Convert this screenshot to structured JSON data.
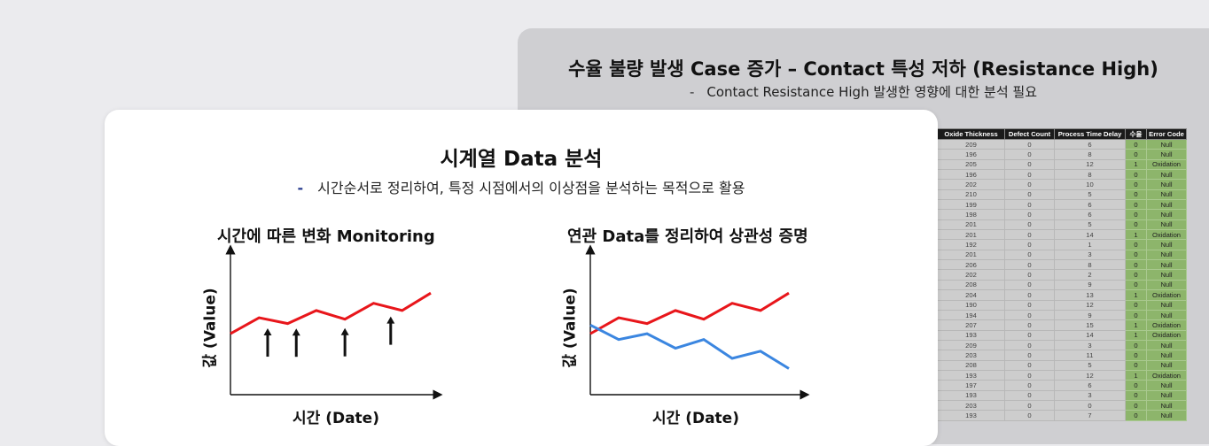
{
  "back_slide": {
    "title": "수율 불량 발생 Case 증가 – Contact 특성 저하 (Resistance High)",
    "subtitle_dash": "-",
    "subtitle": "Contact Resistance High 발생한 영향에 대한 분석 필요",
    "table": {
      "headers": [
        "Oxide Thickness",
        "Defect Count",
        "Process Time Delay",
        "수율",
        "Error Code"
      ],
      "rows": [
        [
          "209",
          "0",
          "6",
          "0",
          "Null"
        ],
        [
          "196",
          "0",
          "8",
          "0",
          "Null"
        ],
        [
          "205",
          "0",
          "12",
          "1",
          "Oxidation"
        ],
        [
          "196",
          "0",
          "8",
          "0",
          "Null"
        ],
        [
          "202",
          "0",
          "10",
          "0",
          "Null"
        ],
        [
          "210",
          "0",
          "5",
          "0",
          "Null"
        ],
        [
          "199",
          "0",
          "6",
          "0",
          "Null"
        ],
        [
          "198",
          "0",
          "6",
          "0",
          "Null"
        ],
        [
          "201",
          "0",
          "5",
          "0",
          "Null"
        ],
        [
          "201",
          "0",
          "14",
          "1",
          "Oxidation"
        ],
        [
          "192",
          "0",
          "1",
          "0",
          "Null"
        ],
        [
          "201",
          "0",
          "3",
          "0",
          "Null"
        ],
        [
          "206",
          "0",
          "8",
          "0",
          "Null"
        ],
        [
          "202",
          "0",
          "2",
          "0",
          "Null"
        ],
        [
          "208",
          "0",
          "9",
          "0",
          "Null"
        ],
        [
          "204",
          "0",
          "13",
          "1",
          "Oxidation"
        ],
        [
          "190",
          "0",
          "12",
          "0",
          "Null"
        ],
        [
          "194",
          "0",
          "9",
          "0",
          "Null"
        ],
        [
          "207",
          "0",
          "15",
          "1",
          "Oxidation"
        ],
        [
          "193",
          "0",
          "14",
          "1",
          "Oxidation"
        ],
        [
          "209",
          "0",
          "3",
          "0",
          "Null"
        ],
        [
          "203",
          "0",
          "11",
          "0",
          "Null"
        ],
        [
          "208",
          "0",
          "5",
          "0",
          "Null"
        ],
        [
          "193",
          "0",
          "12",
          "1",
          "Oxidation"
        ],
        [
          "197",
          "0",
          "6",
          "0",
          "Null"
        ],
        [
          "193",
          "0",
          "3",
          "0",
          "Null"
        ],
        [
          "203",
          "0",
          "0",
          "0",
          "Null"
        ],
        [
          "193",
          "0",
          "7",
          "0",
          "Null"
        ]
      ]
    }
  },
  "front_slide": {
    "title": "시계열 Data 분석",
    "subtitle_dash": "-",
    "subtitle": "시간순서로 정리하여, 특정 시점에서의 이상점을 분석하는 목적으로 활용",
    "colors": {
      "red": "#e8161b",
      "blue": "#3b86e0",
      "axis": "#111111"
    },
    "chart_data": [
      {
        "type": "line",
        "title": "시간에 따른 변화 Monitoring",
        "xlabel": "시간 (Date)",
        "ylabel": "값 (Value)",
        "series": [
          {
            "color": "#e8161b",
            "x": [
              0,
              1,
              2,
              3,
              4,
              5,
              6,
              7
            ],
            "values": [
              4.2,
              5.3,
              4.9,
              5.8,
              5.2,
              6.3,
              5.8,
              7.0
            ]
          }
        ],
        "annotations": {
          "arrow_markers_at_x": [
            1.3,
            2.3,
            4.0,
            5.6
          ]
        },
        "ylim": [
          0,
          10
        ]
      },
      {
        "type": "line",
        "title": "연관 Data를 정리하여 상관성 증명",
        "xlabel": "시간 (Date)",
        "ylabel": "값 (Value)",
        "series": [
          {
            "color": "#e8161b",
            "x": [
              0,
              1,
              2,
              3,
              4,
              5,
              6,
              7
            ],
            "values": [
              4.2,
              5.3,
              4.9,
              5.8,
              5.2,
              6.3,
              5.8,
              7.0
            ]
          },
          {
            "color": "#3b86e0",
            "x": [
              0,
              1,
              2,
              3,
              4,
              5,
              6,
              7
            ],
            "values": [
              4.8,
              3.8,
              4.2,
              3.2,
              3.8,
              2.5,
              3.0,
              1.8
            ]
          }
        ],
        "ylim": [
          0,
          10
        ]
      }
    ]
  }
}
